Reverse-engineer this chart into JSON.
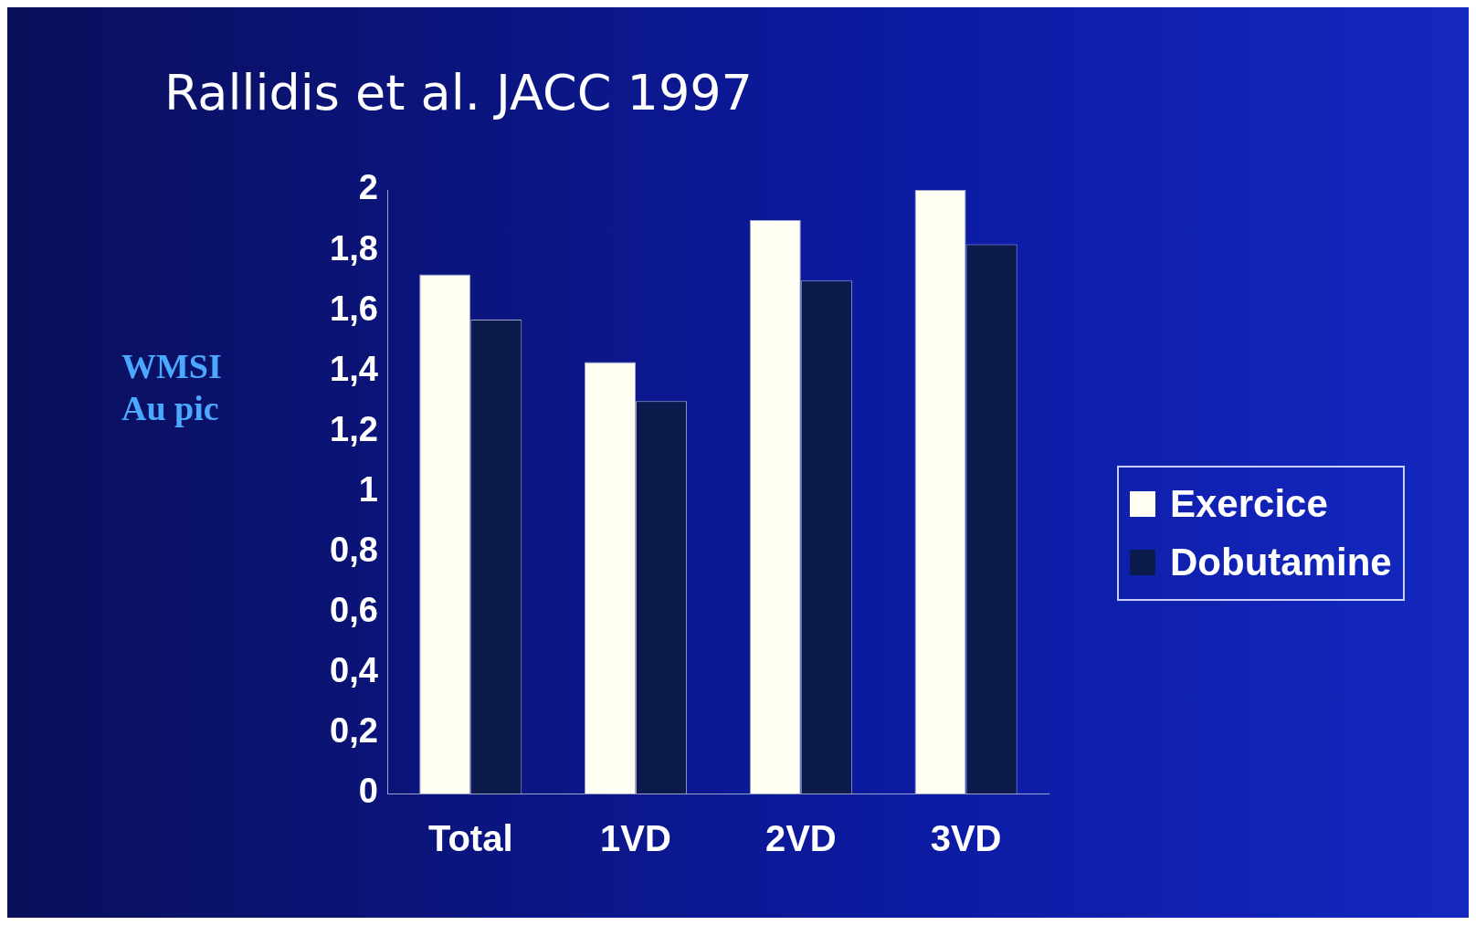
{
  "chart_data": {
    "type": "bar",
    "title": "Rallidis et al. JACC 1997",
    "ylabel": "WMSI\nAu pic",
    "categories": [
      "Total",
      "1VD",
      "2VD",
      "3VD"
    ],
    "series": [
      {
        "name": "Exercice",
        "color": "#fffff4",
        "values": [
          1.72,
          1.43,
          1.9,
          2.0
        ]
      },
      {
        "name": "Dobutamine",
        "color": "#0b1a4a",
        "values": [
          1.57,
          1.3,
          1.7,
          1.82
        ]
      }
    ],
    "ylim": [
      0,
      2
    ],
    "yticks": [
      0,
      {
        "value": 0.2,
        "label": "0,2"
      },
      {
        "value": 0.4,
        "label": "0,4"
      },
      {
        "value": 0.6,
        "label": "0,6"
      },
      {
        "value": 0.8,
        "label": "0,8"
      },
      1,
      {
        "value": 1.2,
        "label": "1,2"
      },
      {
        "value": 1.4,
        "label": "1,4"
      },
      {
        "value": 1.6,
        "label": "1,6"
      },
      {
        "value": 1.8,
        "label": "1,8"
      },
      2
    ],
    "grid": false,
    "legend": "right"
  }
}
